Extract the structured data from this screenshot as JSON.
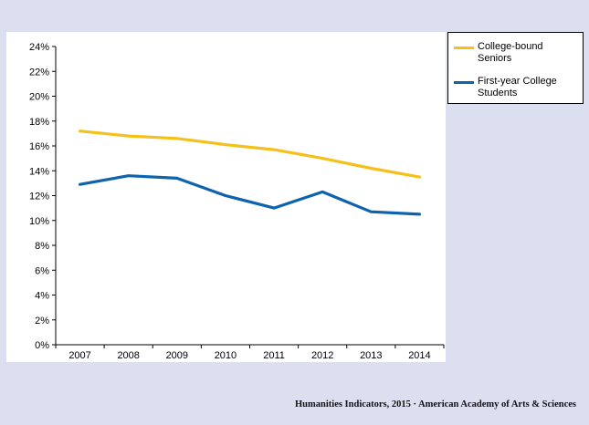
{
  "chart_data": {
    "type": "line",
    "x": [
      "2007",
      "2008",
      "2009",
      "2010",
      "2011",
      "2012",
      "2013",
      "2014"
    ],
    "y_ticks": [
      "0%",
      "2%",
      "4%",
      "6%",
      "8%",
      "10%",
      "12%",
      "14%",
      "16%",
      "18%",
      "20%",
      "22%",
      "24%"
    ],
    "ylim": [
      0,
      24
    ],
    "grid": false,
    "legend_position": "right",
    "series": [
      {
        "name": "College-bound Seniors",
        "color": "#f5c01a",
        "values": [
          17.2,
          16.8,
          16.6,
          16.1,
          15.7,
          15.0,
          14.2,
          13.5
        ]
      },
      {
        "name": "First-year College Students",
        "color": "#0e63ad",
        "values": [
          12.9,
          13.6,
          13.4,
          12.0,
          11.0,
          12.3,
          10.7,
          10.5
        ]
      }
    ]
  },
  "legend": {
    "items": [
      {
        "label": "College-bound Seniors",
        "color": "#f5c01a"
      },
      {
        "label": "First-year College Students",
        "color": "#0e63ad"
      }
    ]
  },
  "footer": {
    "credit": "Humanities Indicators, 2015 · American Academy of Arts & Sciences"
  }
}
